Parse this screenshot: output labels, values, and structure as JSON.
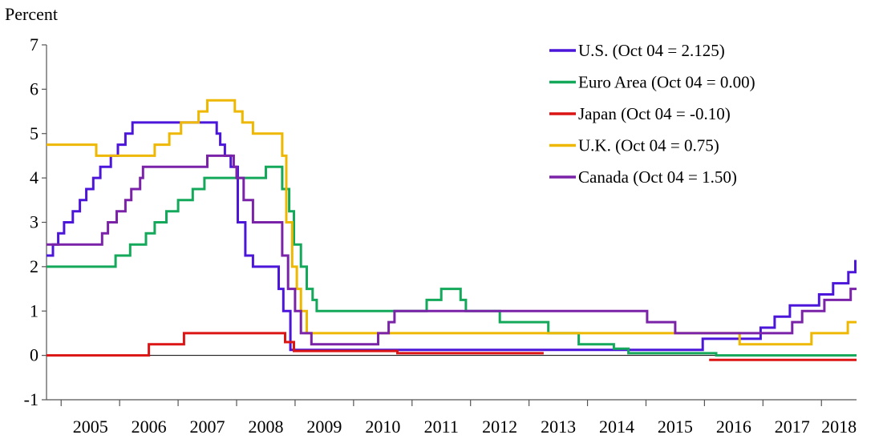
{
  "chart_data": {
    "type": "line",
    "ylabel": "Percent",
    "ylim": [
      -1,
      7
    ],
    "y_ticks": [
      "-1",
      "0",
      "1",
      "2",
      "3",
      "4",
      "5",
      "6",
      "7"
    ],
    "x_range": [
      2004.75,
      2018.6
    ],
    "x_categories": [
      "2005",
      "2006",
      "2007",
      "2008",
      "2009",
      "2010",
      "2011",
      "2012",
      "2013",
      "2014",
      "2015",
      "2016",
      "2017",
      "2018"
    ],
    "legend_position": "top-right",
    "series": [
      {
        "name": "U.S. (Oct 04 = 2.125)",
        "color": "#4B16D9",
        "points": [
          [
            2004.75,
            2.25
          ],
          [
            2004.86,
            2.5
          ],
          [
            2004.95,
            2.75
          ],
          [
            2005.05,
            3.0
          ],
          [
            2005.2,
            3.25
          ],
          [
            2005.32,
            3.5
          ],
          [
            2005.43,
            3.75
          ],
          [
            2005.55,
            4.0
          ],
          [
            2005.67,
            4.25
          ],
          [
            2005.85,
            4.5
          ],
          [
            2005.97,
            4.75
          ],
          [
            2006.1,
            5.0
          ],
          [
            2006.22,
            5.25
          ],
          [
            2007.66,
            5.0
          ],
          [
            2007.72,
            4.75
          ],
          [
            2007.8,
            4.5
          ],
          [
            2007.9,
            4.25
          ],
          [
            2008.02,
            3.0
          ],
          [
            2008.15,
            2.25
          ],
          [
            2008.28,
            2.0
          ],
          [
            2008.72,
            1.5
          ],
          [
            2008.8,
            1.0
          ],
          [
            2008.92,
            0.125
          ],
          [
            2015.97,
            0.375
          ],
          [
            2016.96,
            0.625
          ],
          [
            2017.2,
            0.875
          ],
          [
            2017.46,
            1.125
          ],
          [
            2017.96,
            1.375
          ],
          [
            2018.2,
            1.625
          ],
          [
            2018.46,
            1.875
          ],
          [
            2018.58,
            2.125
          ],
          [
            2018.6,
            2.125
          ]
        ]
      },
      {
        "name": "Euro Area (Oct 04 = 0.00)",
        "color": "#14A85B",
        "points": [
          [
            2004.75,
            2.0
          ],
          [
            2005.93,
            2.25
          ],
          [
            2006.18,
            2.5
          ],
          [
            2006.45,
            2.75
          ],
          [
            2006.6,
            3.0
          ],
          [
            2006.8,
            3.25
          ],
          [
            2007.0,
            3.5
          ],
          [
            2007.25,
            3.75
          ],
          [
            2007.45,
            4.0
          ],
          [
            2008.5,
            4.25
          ],
          [
            2008.78,
            3.75
          ],
          [
            2008.9,
            3.25
          ],
          [
            2008.98,
            2.5
          ],
          [
            2009.1,
            2.0
          ],
          [
            2009.2,
            1.5
          ],
          [
            2009.3,
            1.25
          ],
          [
            2009.37,
            1.0
          ],
          [
            2011.25,
            1.25
          ],
          [
            2011.5,
            1.5
          ],
          [
            2011.83,
            1.25
          ],
          [
            2011.92,
            1.0
          ],
          [
            2012.5,
            0.75
          ],
          [
            2013.33,
            0.5
          ],
          [
            2013.85,
            0.25
          ],
          [
            2014.45,
            0.15
          ],
          [
            2014.7,
            0.05
          ],
          [
            2016.2,
            0.0
          ],
          [
            2018.6,
            0.0
          ]
        ]
      },
      {
        "name": "Japan (Oct 04 = -0.10)",
        "color": "#DB1414",
        "points": [
          [
            2004.75,
            0.0
          ],
          [
            2006.5,
            0.25
          ],
          [
            2007.1,
            0.5
          ],
          [
            2008.83,
            0.3
          ],
          [
            2008.98,
            0.1
          ],
          [
            2010.75,
            0.05
          ],
          [
            2013.25,
            0.05
          ],
          [
            2013.25,
            null
          ],
          [
            2016.08,
            -0.1
          ],
          [
            2018.6,
            -0.1
          ]
        ]
      },
      {
        "name": "U.K. (Oct 04 = 0.75)",
        "color": "#EEB700",
        "points": [
          [
            2004.75,
            4.75
          ],
          [
            2005.6,
            4.5
          ],
          [
            2006.6,
            4.75
          ],
          [
            2006.85,
            5.0
          ],
          [
            2007.05,
            5.25
          ],
          [
            2007.35,
            5.5
          ],
          [
            2007.5,
            5.75
          ],
          [
            2007.97,
            5.5
          ],
          [
            2008.1,
            5.25
          ],
          [
            2008.28,
            5.0
          ],
          [
            2008.78,
            4.5
          ],
          [
            2008.85,
            3.0
          ],
          [
            2008.95,
            2.0
          ],
          [
            2009.03,
            1.5
          ],
          [
            2009.1,
            1.0
          ],
          [
            2009.2,
            0.5
          ],
          [
            2016.6,
            0.25
          ],
          [
            2017.83,
            0.5
          ],
          [
            2018.45,
            0.75
          ],
          [
            2018.6,
            0.75
          ]
        ]
      },
      {
        "name": "Canada (Oct 04 = 1.50)",
        "color": "#7A22A8",
        "points": [
          [
            2004.75,
            2.5
          ],
          [
            2005.7,
            2.75
          ],
          [
            2005.8,
            3.0
          ],
          [
            2005.95,
            3.25
          ],
          [
            2006.1,
            3.5
          ],
          [
            2006.2,
            3.75
          ],
          [
            2006.35,
            4.0
          ],
          [
            2006.4,
            4.25
          ],
          [
            2007.5,
            4.5
          ],
          [
            2007.95,
            4.25
          ],
          [
            2008.0,
            4.0
          ],
          [
            2008.12,
            3.5
          ],
          [
            2008.28,
            3.0
          ],
          [
            2008.78,
            2.25
          ],
          [
            2008.88,
            1.5
          ],
          [
            2009.0,
            1.0
          ],
          [
            2009.1,
            0.5
          ],
          [
            2009.28,
            0.25
          ],
          [
            2010.42,
            0.5
          ],
          [
            2010.6,
            0.75
          ],
          [
            2010.7,
            1.0
          ],
          [
            2015.02,
            0.75
          ],
          [
            2015.5,
            0.5
          ],
          [
            2017.5,
            0.75
          ],
          [
            2017.67,
            1.0
          ],
          [
            2018.05,
            1.25
          ],
          [
            2018.5,
            1.5
          ],
          [
            2018.6,
            1.5
          ]
        ]
      }
    ]
  }
}
